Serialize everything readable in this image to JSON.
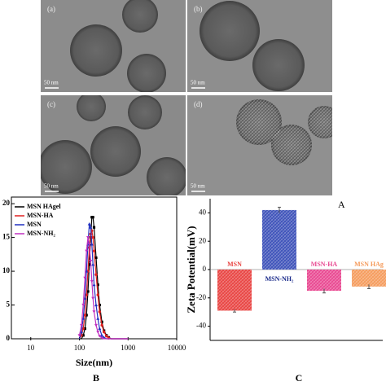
{
  "tem_panels": [
    {
      "label": "(a)",
      "scale": "50 nm"
    },
    {
      "label": "(b)",
      "scale": "50 nm"
    },
    {
      "label": "(c)",
      "scale": "50 nm"
    },
    {
      "label": "(d)",
      "scale": "50 nm"
    }
  ],
  "panel_labels": {
    "A": "A",
    "B": "B",
    "C": "C"
  },
  "chart_data": [
    {
      "type": "line",
      "x_label": "Size(nm)",
      "log_x": true,
      "x": [
        100,
        110,
        120,
        130,
        140,
        150,
        160,
        170,
        180,
        190,
        200,
        220,
        240,
        260,
        290,
        320,
        360,
        400,
        450,
        500,
        600,
        700,
        800,
        1000
      ],
      "series": [
        {
          "name": "MSN HAgel",
          "color": "#000000",
          "marker": "square",
          "values": [
            0,
            0,
            0.5,
            1.5,
            3.5,
            7,
            11,
            15,
            18,
            18,
            16.5,
            12,
            8,
            5,
            2.5,
            1.2,
            0.5,
            0.2,
            0,
            0,
            0,
            0,
            0,
            0
          ]
        },
        {
          "name": "MSN-HA",
          "color": "#e02020",
          "marker": "circle",
          "values": [
            0,
            0.5,
            1.5,
            3.5,
            6.5,
            10,
            13.5,
            15.5,
            16,
            15,
            13,
            9.5,
            6.5,
            4,
            2,
            1,
            0.4,
            0.1,
            0,
            0,
            0,
            0,
            0,
            0
          ]
        },
        {
          "name": "MSN",
          "color": "#2030c0",
          "marker": "triangle",
          "values": [
            0,
            1,
            3,
            6,
            10,
            14,
            17,
            16.5,
            14,
            11,
            8,
            5,
            3,
            1.5,
            0.5,
            0.2,
            0,
            0,
            0,
            0,
            0,
            0,
            0,
            0
          ]
        },
        {
          "name": "MSN-NH₂",
          "color": "#c030c0",
          "marker": "triangle-down",
          "values": [
            0.5,
            2,
            5,
            9,
            13,
            15,
            14,
            11.5,
            8.5,
            6,
            4,
            2,
            1,
            0.4,
            0.1,
            0,
            0,
            0,
            0,
            0,
            0,
            0,
            0,
            0
          ]
        }
      ],
      "xlim": [
        4,
        10000
      ],
      "xticks": [
        10,
        100,
        1000,
        10000
      ],
      "ylim": [
        0,
        20.5
      ],
      "yticks": [
        0,
        5,
        10,
        15,
        20
      ],
      "legend": "upper left"
    },
    {
      "type": "bar",
      "y_label": "Zeta Potential(mV)",
      "categories": [
        "MSN",
        "MSN-NH₂",
        "MSN-HA",
        "MSN HAg"
      ],
      "values": [
        -29,
        42,
        -15,
        -12
      ],
      "errors": [
        1,
        2,
        1.5,
        1.5
      ],
      "colors": [
        "#e8413f",
        "#3a4fb8",
        "#e8458f",
        "#f59a5a"
      ],
      "ylim": [
        -50,
        50
      ],
      "yticks": [
        -40,
        -20,
        0,
        20,
        40
      ]
    }
  ]
}
